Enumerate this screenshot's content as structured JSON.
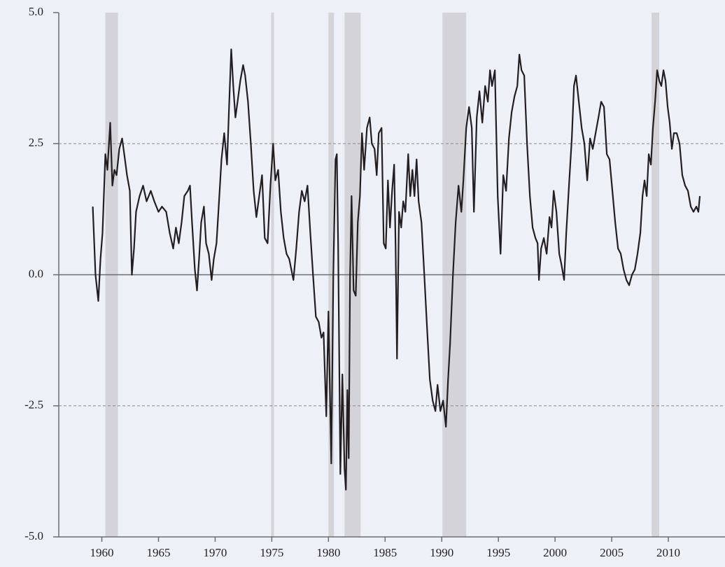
{
  "chart_data": {
    "type": "line",
    "x": [
      1959.2,
      1959.44,
      1959.69,
      1959.88,
      1960.06,
      1960.31,
      1960.49,
      1960.74,
      1960.93,
      1961.11,
      1961.3,
      1961.54,
      1961.79,
      1962.04,
      1962.22,
      1962.47,
      1962.65,
      1962.84,
      1963.02,
      1963.33,
      1963.64,
      1963.95,
      1964.32,
      1964.63,
      1965.0,
      1965.31,
      1965.68,
      1965.99,
      1966.3,
      1966.54,
      1966.79,
      1967.04,
      1967.28,
      1967.59,
      1967.78,
      1967.96,
      1968.21,
      1968.4,
      1968.58,
      1968.77,
      1969.01,
      1969.2,
      1969.44,
      1969.69,
      1969.88,
      1970.12,
      1970.37,
      1970.56,
      1970.8,
      1971.05,
      1971.23,
      1971.42,
      1971.6,
      1971.79,
      1971.98,
      1972.22,
      1972.47,
      1972.65,
      1972.9,
      1973.15,
      1973.4,
      1973.64,
      1973.89,
      1974.14,
      1974.38,
      1974.63,
      1974.88,
      1975.12,
      1975.31,
      1975.56,
      1975.8,
      1976.05,
      1976.3,
      1976.54,
      1976.91,
      1977.16,
      1977.41,
      1977.65,
      1977.9,
      1978.15,
      1978.4,
      1978.64,
      1978.89,
      1979.14,
      1979.38,
      1979.57,
      1979.81,
      1980.0,
      1980.25,
      1980.43,
      1980.62,
      1980.74,
      1980.86,
      1981.05,
      1981.23,
      1981.42,
      1981.54,
      1981.67,
      1981.79,
      1981.91,
      1982.04,
      1982.22,
      1982.41,
      1982.59,
      1982.78,
      1982.96,
      1983.15,
      1983.4,
      1983.64,
      1983.83,
      1984.07,
      1984.26,
      1984.44,
      1984.69,
      1984.88,
      1985.06,
      1985.25,
      1985.43,
      1985.62,
      1985.8,
      1985.93,
      1986.05,
      1986.23,
      1986.42,
      1986.6,
      1986.79,
      1987.04,
      1987.22,
      1987.41,
      1987.59,
      1987.78,
      1987.96,
      1988.21,
      1988.46,
      1988.7,
      1988.95,
      1989.2,
      1989.44,
      1989.63,
      1989.88,
      1990.12,
      1990.37,
      1990.56,
      1990.74,
      1990.99,
      1991.23,
      1991.48,
      1991.73,
      1991.91,
      1992.16,
      1992.41,
      1992.65,
      1992.84,
      1993.09,
      1993.33,
      1993.58,
      1993.83,
      1994.07,
      1994.26,
      1994.44,
      1994.69,
      1994.94,
      1995.19,
      1995.43,
      1995.68,
      1995.93,
      1996.17,
      1996.42,
      1996.67,
      1996.85,
      1997.04,
      1997.28,
      1997.53,
      1997.78,
      1998.02,
      1998.27,
      1998.46,
      1998.58,
      1998.77,
      1999.01,
      1999.26,
      1999.51,
      1999.69,
      1999.88,
      2000.12,
      2000.37,
      2000.56,
      2000.8,
      2000.99,
      2001.23,
      2001.48,
      2001.67,
      2001.85,
      2002.1,
      2002.35,
      2002.59,
      2002.84,
      2003.09,
      2003.33,
      2003.58,
      2003.83,
      2004.07,
      2004.32,
      2004.57,
      2004.81,
      2005.06,
      2005.31,
      2005.56,
      2005.8,
      2006.05,
      2006.3,
      2006.54,
      2006.79,
      2007.04,
      2007.28,
      2007.53,
      2007.72,
      2007.9,
      2008.09,
      2008.27,
      2008.46,
      2008.64,
      2008.83,
      2009.01,
      2009.2,
      2009.38,
      2009.57,
      2009.75,
      2009.94,
      2010.12,
      2010.31,
      2010.49,
      2010.74,
      2010.99,
      2011.23,
      2011.48,
      2011.73,
      2011.98,
      2012.22,
      2012.47,
      2012.65,
      2012.78
    ],
    "values": [
      1.3,
      0.0,
      -0.5,
      0.3,
      0.8,
      2.3,
      2.0,
      2.9,
      1.7,
      2.0,
      1.9,
      2.4,
      2.6,
      2.2,
      1.9,
      1.6,
      0.0,
      0.5,
      1.2,
      1.5,
      1.7,
      1.4,
      1.6,
      1.4,
      1.2,
      1.3,
      1.2,
      0.8,
      0.5,
      0.9,
      0.6,
      1.0,
      1.5,
      1.6,
      1.7,
      1.0,
      0.1,
      -0.3,
      0.3,
      1.0,
      1.3,
      0.6,
      0.4,
      -0.1,
      0.3,
      0.6,
      1.5,
      2.2,
      2.7,
      2.1,
      3.2,
      4.3,
      3.6,
      3.0,
      3.3,
      3.7,
      4.0,
      3.8,
      3.3,
      2.5,
      1.6,
      1.1,
      1.5,
      1.9,
      0.7,
      0.6,
      1.7,
      2.5,
      1.8,
      2.0,
      1.2,
      0.7,
      0.4,
      0.3,
      -0.1,
      0.5,
      1.2,
      1.6,
      1.4,
      1.7,
      0.8,
      0.0,
      -0.8,
      -0.9,
      -1.2,
      -1.1,
      -2.7,
      -0.7,
      -3.6,
      0.0,
      2.2,
      2.3,
      0.5,
      -3.8,
      -1.9,
      -3.7,
      -4.1,
      -2.2,
      -3.5,
      0.0,
      1.5,
      -0.3,
      -0.4,
      1.0,
      1.5,
      2.7,
      2.0,
      2.8,
      3.0,
      2.5,
      2.4,
      1.9,
      2.7,
      2.8,
      0.6,
      0.5,
      1.8,
      0.9,
      1.6,
      2.1,
      0.5,
      -1.6,
      1.2,
      0.9,
      1.4,
      1.2,
      2.3,
      1.5,
      2.0,
      1.5,
      2.2,
      1.4,
      1.0,
      0.0,
      -1.0,
      -2.0,
      -2.4,
      -2.6,
      -2.1,
      -2.6,
      -2.4,
      -2.9,
      -2.0,
      -1.3,
      0.0,
      1.0,
      1.7,
      1.2,
      1.8,
      2.8,
      3.2,
      2.8,
      1.2,
      3.0,
      3.5,
      2.9,
      3.6,
      3.3,
      3.9,
      3.6,
      3.9,
      1.5,
      0.4,
      1.9,
      1.6,
      2.6,
      3.1,
      3.4,
      3.6,
      4.2,
      3.9,
      3.8,
      2.5,
      1.5,
      0.9,
      0.7,
      0.6,
      -0.1,
      0.5,
      0.7,
      0.4,
      1.1,
      0.9,
      1.6,
      1.2,
      0.4,
      0.2,
      -0.1,
      0.8,
      1.7,
      2.6,
      3.6,
      3.8,
      3.3,
      2.8,
      2.5,
      1.8,
      2.6,
      2.4,
      2.7,
      3.0,
      3.3,
      3.2,
      2.3,
      2.2,
      1.6,
      1.0,
      0.5,
      0.4,
      0.1,
      -0.1,
      -0.2,
      0.0,
      0.1,
      0.4,
      0.8,
      1.5,
      1.8,
      1.5,
      2.3,
      2.1,
      2.8,
      3.3,
      3.9,
      3.7,
      3.6,
      3.9,
      3.7,
      3.2,
      2.9,
      2.4,
      2.7,
      2.7,
      2.5,
      1.9,
      1.7,
      1.6,
      1.3,
      1.2,
      1.3,
      1.2,
      1.5
    ],
    "color": "#231f20",
    "bands": [
      [
        1960.31,
        1961.42
      ],
      [
        1974.94,
        1975.19
      ],
      [
        1980.0,
        1980.49
      ],
      [
        1981.42,
        1982.84
      ],
      [
        1990.06,
        1992.16
      ],
      [
        2008.52,
        2009.2
      ]
    ],
    "band_color": "#d4d4d8",
    "xlim": [
      1956.2,
      2015.0
    ],
    "xticks": [
      1960,
      1965,
      1970,
      1975,
      1980,
      1985,
      1990,
      1995,
      2000,
      2005,
      2010
    ],
    "ylim": [
      -5,
      5
    ],
    "yticks": [
      {
        "value": 5,
        "label": "5.0"
      },
      {
        "value": 2.5,
        "label": "2.5"
      },
      {
        "value": 0,
        "label": "0.0"
      },
      {
        "value": -2.5,
        "label": "-2.5"
      },
      {
        "value": -5,
        "label": "-5.0"
      }
    ],
    "hlines": [
      {
        "value": 0,
        "style": "solid"
      },
      {
        "value": 2.5,
        "style": "dashed"
      },
      {
        "value": -2.5,
        "style": "dashed"
      }
    ]
  }
}
